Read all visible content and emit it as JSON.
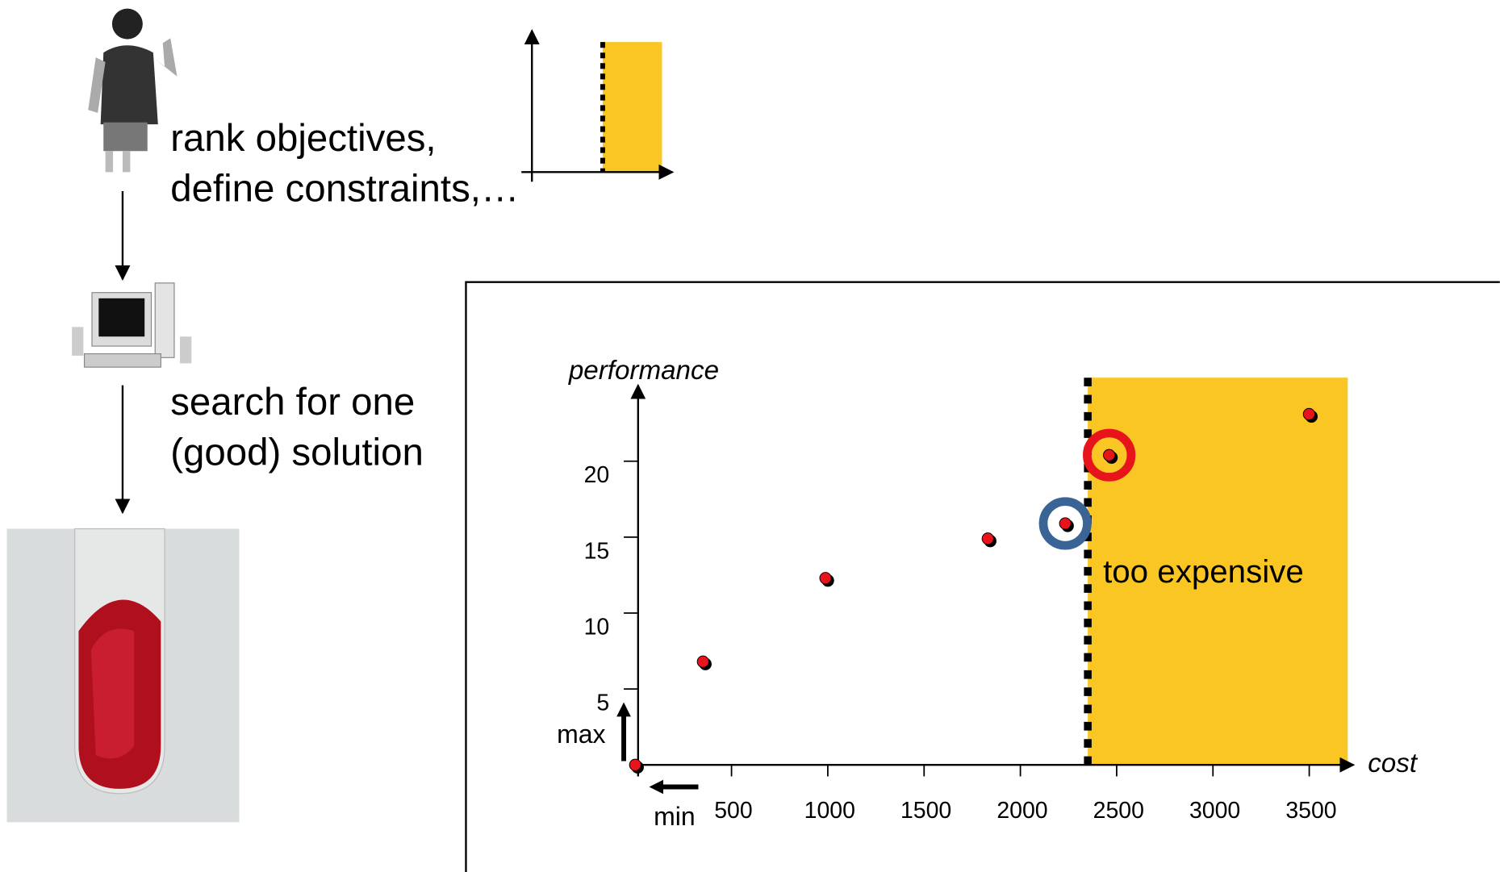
{
  "slide": {
    "step1": [
      "rank objectives,",
      "define constraints,…"
    ],
    "step2": [
      "search for one",
      "(good) solution"
    ]
  },
  "chart_data": {
    "type": "scatter",
    "x_label": "cost",
    "y_label": "performance",
    "x": [
      0,
      352,
      988,
      1831,
      2233,
      2461,
      3499
    ],
    "values": [
      0,
      6.8,
      12.3,
      14.9,
      15.9,
      20.4,
      23.1
    ],
    "color": "#e8141b",
    "xlim": [
      0,
      3700
    ],
    "ylim": [
      0,
      25.5
    ],
    "xticks": [
      500,
      1000,
      1500,
      2000,
      2500,
      3000,
      3500
    ],
    "yticks": [
      5,
      10,
      15,
      20
    ],
    "constraint": {
      "x": 2350,
      "label": "too expensive",
      "color": "#f9c623"
    },
    "highlights": [
      {
        "index": 4,
        "color": "#3a6496"
      },
      {
        "index": 5,
        "color": "#e8141b"
      }
    ],
    "direction_labels": {
      "y": "max",
      "x": "min"
    }
  }
}
